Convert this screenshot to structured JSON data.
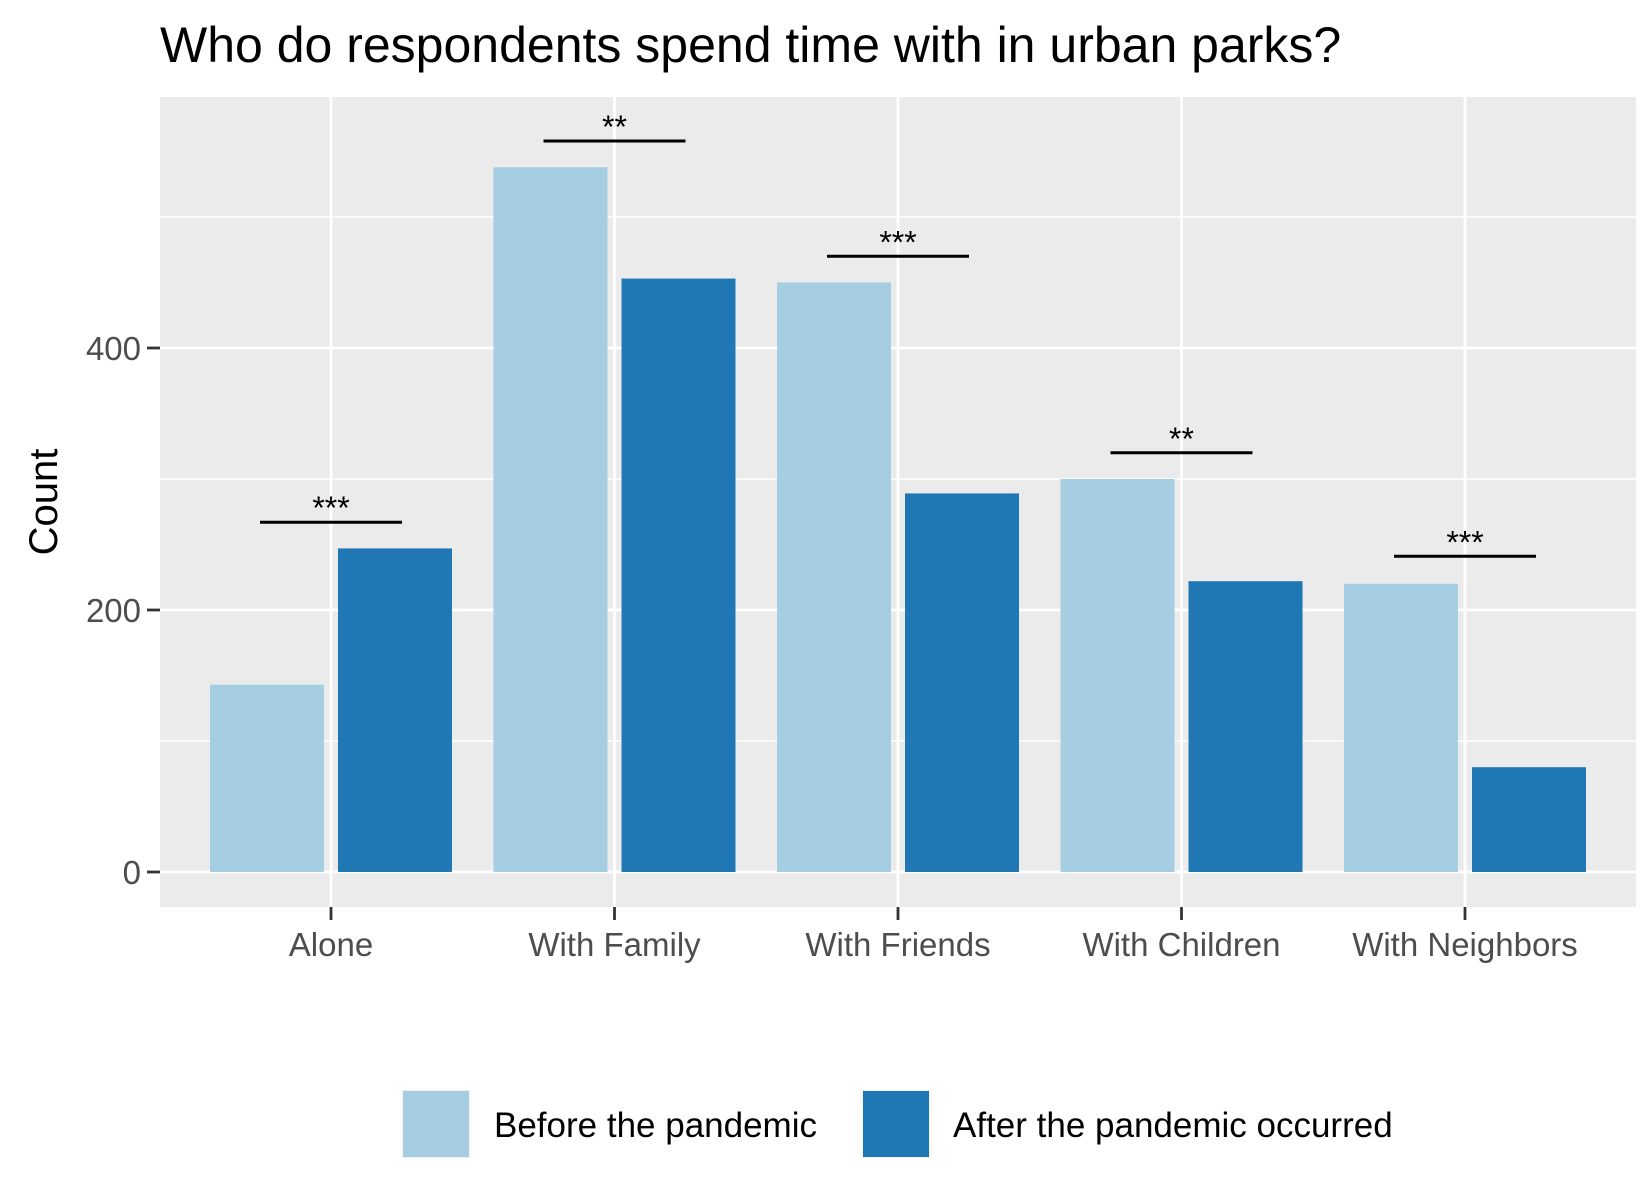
{
  "chart_data": {
    "type": "bar",
    "title": "Who do respondents spend time with in urban parks?",
    "xlabel": "",
    "ylabel": "Count",
    "ylim": [
      0,
      590
    ],
    "yticks": [
      "0",
      "200",
      "400"
    ],
    "grid": true,
    "legend_position": "bottom",
    "categories": [
      "Alone",
      "With Family",
      "With Friends",
      "With Children",
      "With Neighbors"
    ],
    "series": [
      {
        "name": "Before the pandemic",
        "color": "#a6cee3",
        "values": [
          143,
          538,
          450,
          300,
          220
        ]
      },
      {
        "name": "After the pandemic occurred",
        "color": "#1f78b4",
        "values": [
          247,
          453,
          289,
          222,
          80
        ]
      }
    ],
    "significance": [
      {
        "label": "***",
        "y": 267
      },
      {
        "label": "**",
        "y": 558
      },
      {
        "label": "***",
        "y": 470
      },
      {
        "label": "**",
        "y": 320
      },
      {
        "label": "***",
        "y": 241
      }
    ]
  }
}
